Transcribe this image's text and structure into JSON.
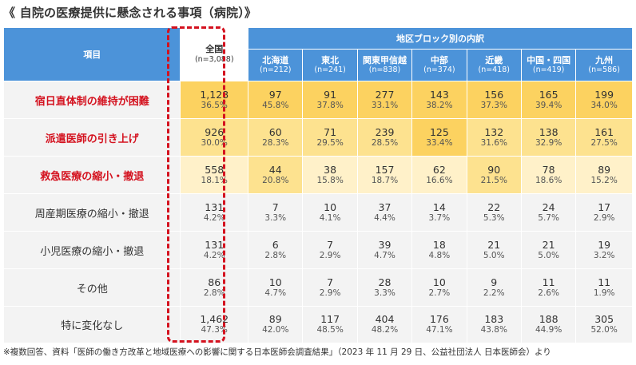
{
  "title": "《 自院の医療提供に懸念される事項（病院）》",
  "header": {
    "item_label": "項目",
    "total_label": "全国",
    "total_n": "(n=3,088)",
    "region_label": "地区ブロック別の内訳",
    "regions": [
      {
        "name": "北海道",
        "n": "(n=212)"
      },
      {
        "name": "東北",
        "n": "(n=241)"
      },
      {
        "name": "関東甲信越",
        "n": "(n=838)"
      },
      {
        "name": "中部",
        "n": "(n=374)"
      },
      {
        "name": "近畿",
        "n": "(n=418)"
      },
      {
        "name": "中国・四国",
        "n": "(n=419)"
      },
      {
        "name": "九州",
        "n": "(n=586)"
      }
    ]
  },
  "colors": {
    "header_blue": "#4c93d9",
    "item_red": "#d4121f",
    "heat_dark": "#fcd260",
    "heat_mid": "#fde28f",
    "heat_light": "#fff1c9",
    "neutral": "#f3f3f3"
  },
  "rows": [
    {
      "label": "宿日直体制の維持が困難",
      "highlight": true,
      "total": [
        "1,128",
        "36.5%",
        "dark"
      ],
      "cells": [
        [
          "97",
          "45.8%",
          "dark"
        ],
        [
          "91",
          "37.8%",
          "dark"
        ],
        [
          "277",
          "33.1%",
          "dark"
        ],
        [
          "143",
          "38.2%",
          "dark"
        ],
        [
          "156",
          "37.3%",
          "dark"
        ],
        [
          "165",
          "39.4%",
          "dark"
        ],
        [
          "199",
          "34.0%",
          "dark"
        ]
      ]
    },
    {
      "label": "派遣医師の引き上げ",
      "highlight": true,
      "total": [
        "926",
        "30.0%",
        "mid"
      ],
      "cells": [
        [
          "60",
          "28.3%",
          "mid"
        ],
        [
          "71",
          "29.5%",
          "mid"
        ],
        [
          "239",
          "28.5%",
          "mid"
        ],
        [
          "125",
          "33.4%",
          "dark"
        ],
        [
          "132",
          "31.6%",
          "mid"
        ],
        [
          "138",
          "32.9%",
          "mid"
        ],
        [
          "161",
          "27.5%",
          "mid"
        ]
      ]
    },
    {
      "label": "救急医療の縮小・撤退",
      "highlight": true,
      "total": [
        "558",
        "18.1%",
        "light"
      ],
      "cells": [
        [
          "44",
          "20.8%",
          "mid"
        ],
        [
          "38",
          "15.8%",
          "light"
        ],
        [
          "157",
          "18.7%",
          "light"
        ],
        [
          "62",
          "16.6%",
          "light"
        ],
        [
          "90",
          "21.5%",
          "mid"
        ],
        [
          "78",
          "18.6%",
          "light"
        ],
        [
          "89",
          "15.2%",
          "light"
        ]
      ]
    },
    {
      "label": "周産期医療の縮小・撤退",
      "highlight": false,
      "total": [
        "131",
        "4.2%",
        "none"
      ],
      "cells": [
        [
          "7",
          "3.3%",
          "none"
        ],
        [
          "10",
          "4.1%",
          "none"
        ],
        [
          "37",
          "4.4%",
          "none"
        ],
        [
          "14",
          "3.7%",
          "none"
        ],
        [
          "22",
          "5.3%",
          "none"
        ],
        [
          "24",
          "5.7%",
          "none"
        ],
        [
          "17",
          "2.9%",
          "none"
        ]
      ]
    },
    {
      "label": "小児医療の縮小・撤退",
      "highlight": false,
      "total": [
        "131",
        "4.2%",
        "none"
      ],
      "cells": [
        [
          "6",
          "2.8%",
          "none"
        ],
        [
          "7",
          "2.9%",
          "none"
        ],
        [
          "39",
          "4.7%",
          "none"
        ],
        [
          "18",
          "4.8%",
          "none"
        ],
        [
          "21",
          "5.0%",
          "none"
        ],
        [
          "21",
          "5.0%",
          "none"
        ],
        [
          "19",
          "3.2%",
          "none"
        ]
      ]
    },
    {
      "label": "その他",
      "highlight": false,
      "total": [
        "86",
        "2.8%",
        "none"
      ],
      "cells": [
        [
          "10",
          "4.7%",
          "none"
        ],
        [
          "7",
          "2.9%",
          "none"
        ],
        [
          "28",
          "3.3%",
          "none"
        ],
        [
          "10",
          "2.7%",
          "none"
        ],
        [
          "9",
          "2.2%",
          "none"
        ],
        [
          "11",
          "2.6%",
          "none"
        ],
        [
          "11",
          "1.9%",
          "none"
        ]
      ]
    },
    {
      "label": "特に変化なし",
      "highlight": false,
      "total": [
        "1,462",
        "47.3%",
        "none"
      ],
      "cells": [
        [
          "89",
          "42.0%",
          "none"
        ],
        [
          "117",
          "48.5%",
          "none"
        ],
        [
          "404",
          "48.2%",
          "none"
        ],
        [
          "176",
          "47.1%",
          "none"
        ],
        [
          "183",
          "43.8%",
          "none"
        ],
        [
          "188",
          "44.9%",
          "none"
        ],
        [
          "305",
          "52.0%",
          "none"
        ]
      ]
    }
  ],
  "footnote": "※複数回答、資料「医師の働き方改革と地域医療への影響に関する日本医師会調査結果」（2023 年 11 月 29 日、公益社団法人 日本医師会）より"
}
